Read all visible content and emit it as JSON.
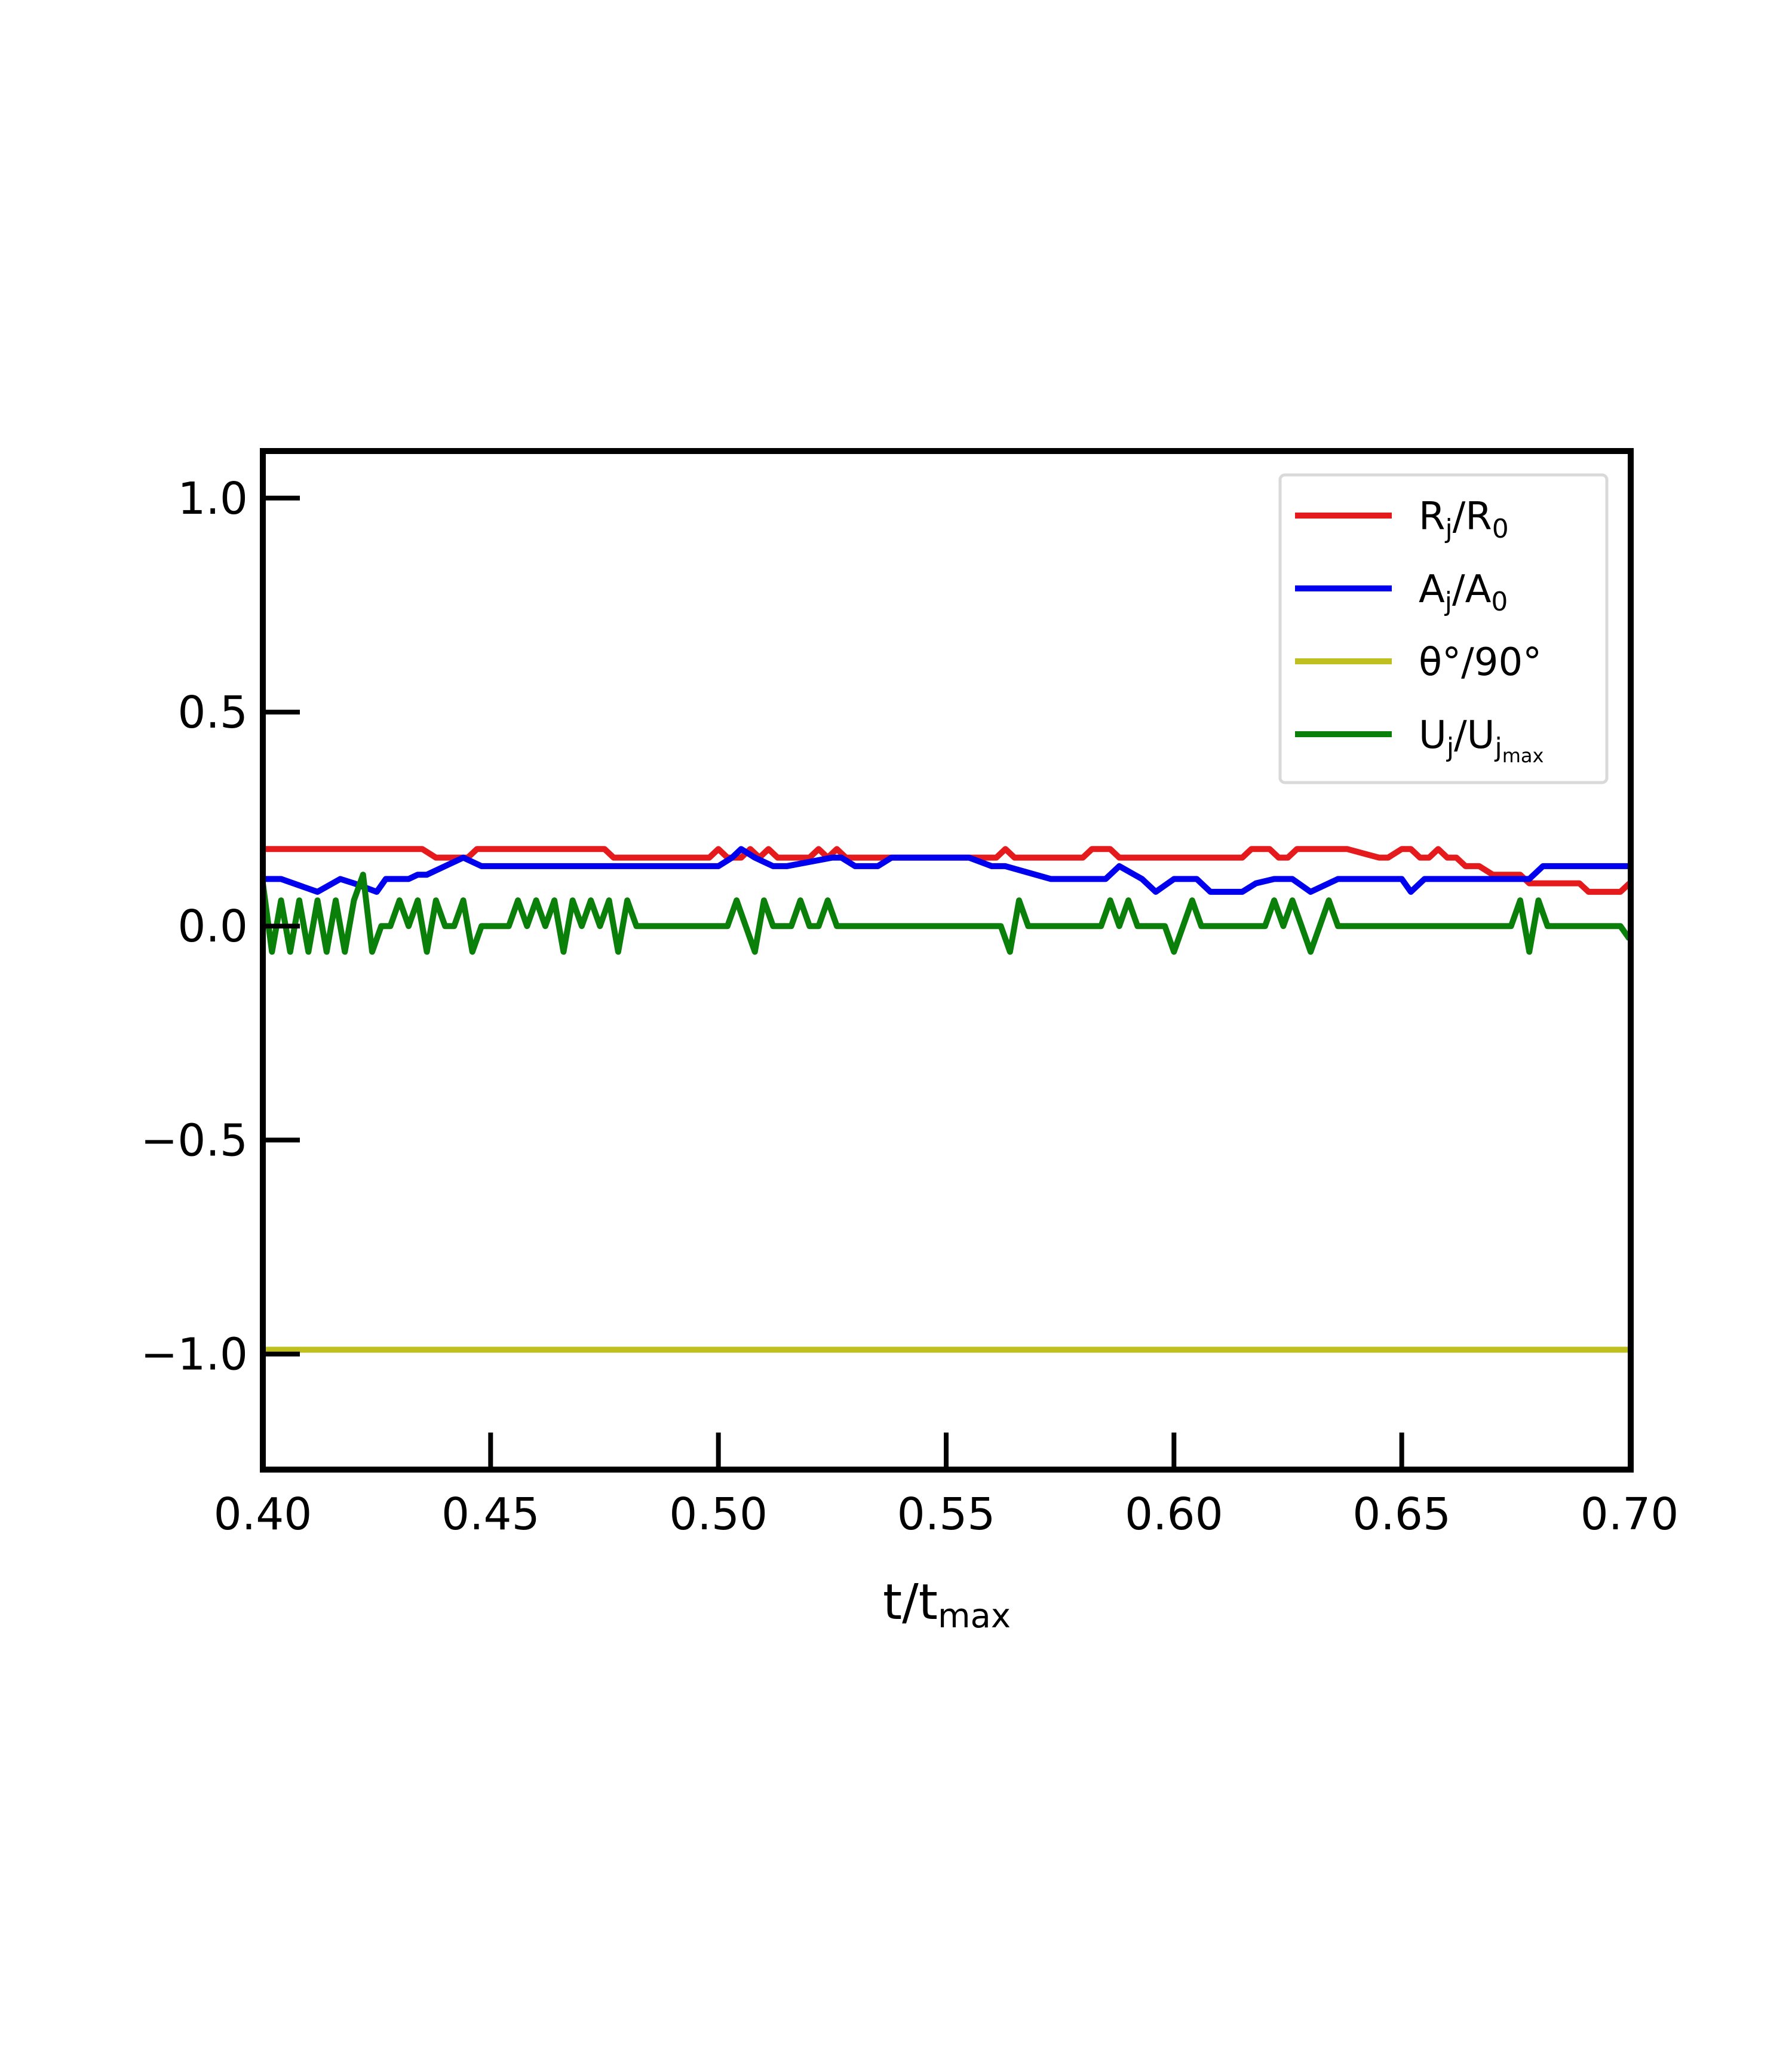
{
  "chart_data": {
    "type": "line",
    "xlabel": "t/t",
    "xlabel_sub": "max",
    "ylabel": "",
    "xlim": [
      0.4,
      0.7
    ],
    "ylim": [
      -1.27,
      1.11
    ],
    "xticks": [
      0.4,
      0.45,
      0.5,
      0.55,
      0.6,
      0.65,
      0.7
    ],
    "xtick_labels": [
      "0.40",
      "0.45",
      "0.50",
      "0.55",
      "0.60",
      "0.65",
      "0.70"
    ],
    "yticks": [
      1.0,
      0.5,
      0.0,
      -0.5,
      -1.0
    ],
    "ytick_labels": [
      "1.0",
      "0.5",
      "0.0",
      "−0.5",
      "−1.0"
    ],
    "grid": false,
    "legend_position": "top-right",
    "series": [
      {
        "name": "R_j/R_0",
        "legend": {
          "main": "R",
          "sub1": "j",
          "mid": "/R",
          "sub2": "0"
        },
        "color": "#e41a1c",
        "x": [
          0.4,
          0.435,
          0.438,
          0.445,
          0.447,
          0.475,
          0.477,
          0.498,
          0.5,
          0.502,
          0.505,
          0.507,
          0.509,
          0.511,
          0.513,
          0.515,
          0.52,
          0.522,
          0.524,
          0.526,
          0.528,
          0.561,
          0.563,
          0.565,
          0.58,
          0.582,
          0.586,
          0.588,
          0.615,
          0.617,
          0.621,
          0.623,
          0.625,
          0.627,
          0.636,
          0.638,
          0.645,
          0.647,
          0.65,
          0.652,
          0.654,
          0.656,
          0.658,
          0.66,
          0.662,
          0.664,
          0.667,
          0.67,
          0.676,
          0.678,
          0.689,
          0.691,
          0.698,
          0.7
        ],
        "y": [
          0.18,
          0.18,
          0.16,
          0.16,
          0.18,
          0.18,
          0.16,
          0.16,
          0.18,
          0.16,
          0.16,
          0.18,
          0.16,
          0.18,
          0.16,
          0.16,
          0.16,
          0.18,
          0.16,
          0.18,
          0.16,
          0.16,
          0.18,
          0.16,
          0.16,
          0.18,
          0.18,
          0.16,
          0.16,
          0.18,
          0.18,
          0.16,
          0.16,
          0.18,
          0.18,
          0.18,
          0.16,
          0.16,
          0.18,
          0.18,
          0.16,
          0.16,
          0.18,
          0.16,
          0.16,
          0.14,
          0.14,
          0.12,
          0.12,
          0.1,
          0.1,
          0.08,
          0.08,
          0.1
        ]
      },
      {
        "name": "A_j/A_0",
        "legend": {
          "main": "A",
          "sub1": "j",
          "mid": "/A",
          "sub2": "0"
        },
        "color": "#0000ee",
        "x": [
          0.4,
          0.404,
          0.412,
          0.417,
          0.42,
          0.425,
          0.427,
          0.43,
          0.432,
          0.434,
          0.436,
          0.44,
          0.444,
          0.448,
          0.452,
          0.5,
          0.503,
          0.505,
          0.508,
          0.512,
          0.515,
          0.525,
          0.527,
          0.53,
          0.534,
          0.535,
          0.538,
          0.542,
          0.55,
          0.555,
          0.56,
          0.563,
          0.573,
          0.58,
          0.585,
          0.588,
          0.593,
          0.596,
          0.6,
          0.605,
          0.608,
          0.615,
          0.618,
          0.622,
          0.626,
          0.63,
          0.636,
          0.64,
          0.645,
          0.65,
          0.652,
          0.655,
          0.66,
          0.663,
          0.666,
          0.675,
          0.678,
          0.681,
          0.688,
          0.7
        ],
        "y": [
          0.11,
          0.11,
          0.08,
          0.11,
          0.1,
          0.08,
          0.11,
          0.11,
          0.11,
          0.12,
          0.12,
          0.14,
          0.16,
          0.14,
          0.14,
          0.14,
          0.16,
          0.18,
          0.16,
          0.14,
          0.14,
          0.16,
          0.16,
          0.14,
          0.14,
          0.14,
          0.16,
          0.16,
          0.16,
          0.16,
          0.14,
          0.14,
          0.11,
          0.11,
          0.11,
          0.14,
          0.11,
          0.08,
          0.11,
          0.11,
          0.08,
          0.08,
          0.1,
          0.11,
          0.11,
          0.08,
          0.11,
          0.11,
          0.11,
          0.11,
          0.08,
          0.11,
          0.11,
          0.11,
          0.11,
          0.11,
          0.11,
          0.14,
          0.14,
          0.14
        ]
      },
      {
        "name": "θ°/90°",
        "legend": {
          "main": "θ°/90°",
          "sub1": "",
          "mid": "",
          "sub2": ""
        },
        "color": "#bfbf1f",
        "x": [
          0.4,
          0.7
        ],
        "y": [
          -0.99,
          -0.99
        ]
      },
      {
        "name": "U_j/U_jmax",
        "legend": {
          "main": "U",
          "sub1": "j",
          "mid": "/U",
          "sub2": "j",
          "sub3": "max"
        },
        "color": "#0a7f0a",
        "x": [
          0.4,
          0.402,
          0.404,
          0.406,
          0.408,
          0.41,
          0.412,
          0.414,
          0.416,
          0.418,
          0.42,
          0.422,
          0.424,
          0.426,
          0.428,
          0.43,
          0.432,
          0.434,
          0.436,
          0.438,
          0.44,
          0.442,
          0.444,
          0.446,
          0.448,
          0.45,
          0.452,
          0.454,
          0.456,
          0.458,
          0.46,
          0.462,
          0.464,
          0.466,
          0.468,
          0.47,
          0.472,
          0.474,
          0.476,
          0.478,
          0.48,
          0.482,
          0.484,
          0.486,
          0.488,
          0.49,
          0.492,
          0.494,
          0.496,
          0.498,
          0.5,
          0.502,
          0.504,
          0.506,
          0.508,
          0.51,
          0.512,
          0.514,
          0.516,
          0.518,
          0.52,
          0.522,
          0.524,
          0.526,
          0.528,
          0.53,
          0.532,
          0.534,
          0.536,
          0.538,
          0.54,
          0.542,
          0.544,
          0.546,
          0.548,
          0.55,
          0.552,
          0.554,
          0.556,
          0.558,
          0.56,
          0.562,
          0.564,
          0.566,
          0.568,
          0.57,
          0.572,
          0.574,
          0.576,
          0.578,
          0.58,
          0.582,
          0.584,
          0.586,
          0.588,
          0.59,
          0.592,
          0.594,
          0.596,
          0.598,
          0.6,
          0.602,
          0.604,
          0.606,
          0.608,
          0.61,
          0.612,
          0.614,
          0.616,
          0.618,
          0.62,
          0.622,
          0.624,
          0.626,
          0.628,
          0.63,
          0.632,
          0.634,
          0.636,
          0.638,
          0.64,
          0.642,
          0.644,
          0.646,
          0.648,
          0.65,
          0.652,
          0.654,
          0.656,
          0.658,
          0.66,
          0.662,
          0.664,
          0.666,
          0.668,
          0.67,
          0.672,
          0.674,
          0.676,
          0.678,
          0.68,
          0.682,
          0.684,
          0.686,
          0.688,
          0.69,
          0.692,
          0.694,
          0.696,
          0.698,
          0.7
        ],
        "y": [
          0.1,
          -0.06,
          0.06,
          -0.06,
          0.06,
          -0.06,
          0.06,
          -0.06,
          0.06,
          -0.06,
          0.06,
          0.12,
          -0.06,
          0.0,
          0.0,
          0.06,
          0.0,
          0.06,
          -0.06,
          0.06,
          0.0,
          0.0,
          0.06,
          -0.06,
          0.0,
          0.0,
          0.0,
          0.0,
          0.06,
          0.0,
          0.06,
          0.0,
          0.06,
          -0.06,
          0.06,
          0.0,
          0.06,
          0.0,
          0.06,
          -0.06,
          0.06,
          0.0,
          0.0,
          0.0,
          0.0,
          0.0,
          0.0,
          0.0,
          0.0,
          0.0,
          0.0,
          0.0,
          0.06,
          0.0,
          -0.06,
          0.06,
          0.0,
          0.0,
          0.0,
          0.06,
          0.0,
          0.0,
          0.06,
          0.0,
          0.0,
          0.0,
          0.0,
          0.0,
          0.0,
          0.0,
          0.0,
          0.0,
          0.0,
          0.0,
          0.0,
          0.0,
          0.0,
          0.0,
          0.0,
          0.0,
          0.0,
          0.0,
          -0.06,
          0.06,
          0.0,
          0.0,
          0.0,
          0.0,
          0.0,
          0.0,
          0.0,
          0.0,
          0.0,
          0.06,
          0.0,
          0.06,
          0.0,
          0.0,
          0.0,
          0.0,
          -0.06,
          0.0,
          0.06,
          0.0,
          0.0,
          0.0,
          0.0,
          0.0,
          0.0,
          0.0,
          0.0,
          0.06,
          0.0,
          0.06,
          0.0,
          -0.06,
          0.0,
          0.06,
          0.0,
          0.0,
          0.0,
          0.0,
          0.0,
          0.0,
          0.0,
          0.0,
          0.0,
          0.0,
          0.0,
          0.0,
          0.0,
          0.0,
          0.0,
          0.0,
          0.0,
          0.0,
          0.0,
          0.0,
          0.06,
          -0.06,
          0.06,
          0.0,
          0.0,
          0.0,
          0.0,
          0.0,
          0.0,
          0.0,
          0.0,
          0.0,
          -0.03
        ]
      }
    ]
  }
}
